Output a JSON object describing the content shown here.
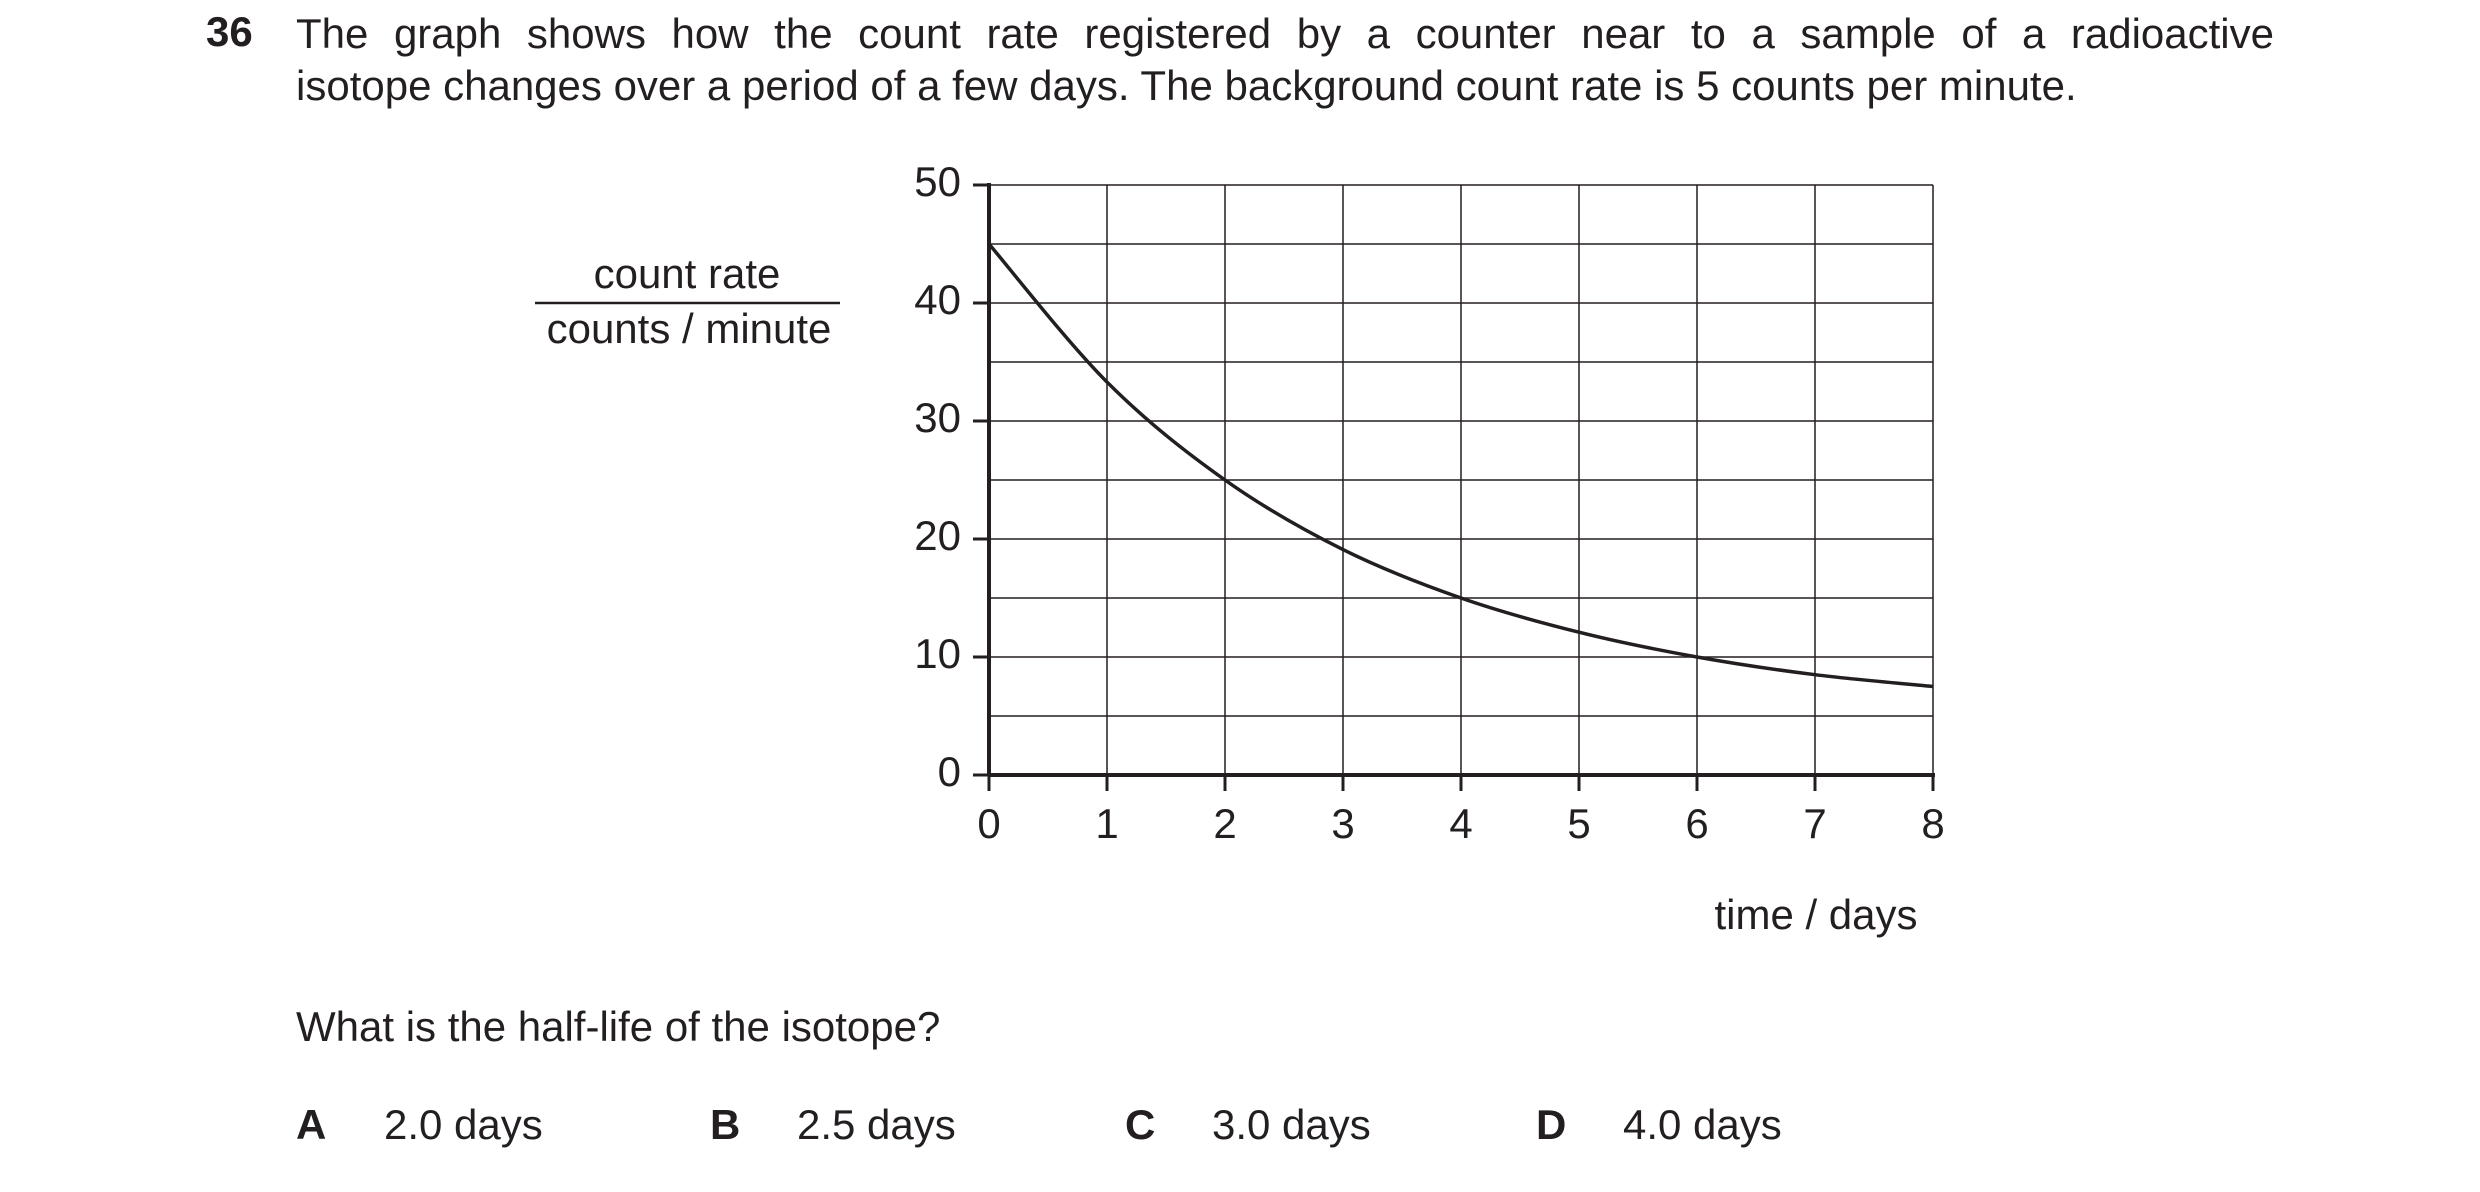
{
  "question": {
    "number": "36",
    "text": [
      "The graph shows how the count rate registered by a counter near to a sample of a radioactive",
      "isotope changes over a period of a few days. The background count rate is 5 counts per minute."
    ],
    "prompt": "What is the half-life of the isotope?",
    "options": [
      {
        "letter": "A",
        "text": "2.0 days"
      },
      {
        "letter": "B",
        "text": "2.5 days"
      },
      {
        "letter": "C",
        "text": "3.0 days"
      },
      {
        "letter": "D",
        "text": "4.0 days"
      }
    ]
  },
  "chart_data": {
    "type": "line",
    "ylabel": [
      "count rate",
      "counts / minute"
    ],
    "xlabel": "time / days",
    "x": [
      0,
      1,
      2,
      3,
      4,
      5,
      6,
      7,
      8
    ],
    "series": [
      {
        "color": "#231f20",
        "values": [
          45,
          33.3,
          25,
          19.1,
          15,
          12.1,
          10,
          8.5,
          7.5
        ]
      }
    ],
    "xlim": [
      0,
      8
    ],
    "ylim": [
      0,
      50
    ],
    "xticks": [
      0,
      1,
      2,
      3,
      4,
      5,
      6,
      7,
      8
    ],
    "yticks": [
      0,
      10,
      20,
      30,
      40,
      50
    ],
    "y_minor_grid": [
      5,
      15,
      25,
      35,
      45
    ],
    "grid": true
  }
}
